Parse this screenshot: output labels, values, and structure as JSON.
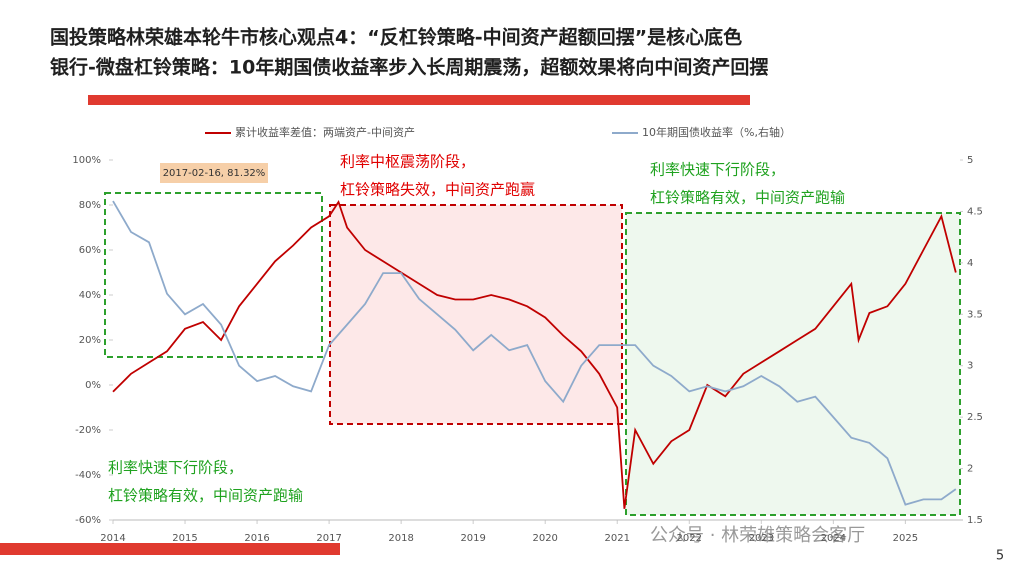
{
  "chart_data": {
    "type": "line",
    "title": [
      "国投策略林荣雄本轮牛市核心观点4：“反杠铃策略-中间资产超额回摆”是核心底色",
      "银行-微盘杠铃策略：10年期国债收益率步入长周期震荡，超额效果将向中间资产回摆"
    ],
    "annotations": [
      "利率中枢震荡阶段，",
      "杠铃策略失效，中间资产跑赢",
      "利率快速下行阶段，",
      "杠铃策略有效，中间资产跑输",
      "利率快速下行阶段，",
      "杠铃策略有效，中间资产跑输"
    ],
    "highlight_label": "2017-02-16, 81.32%",
    "page_number": "5",
    "watermark": "公众号 · 林荣雄策略会客厅",
    "xlim": [
      2014,
      2025.8
    ],
    "xticks": [
      2014,
      2015,
      2016,
      2017,
      2018,
      2019,
      2020,
      2021,
      2022,
      2023,
      2024,
      2025
    ],
    "ylim": [
      -60,
      100
    ],
    "yticks": [
      {
        "value": -60,
        "label": "-60%"
      },
      {
        "value": -40,
        "label": "-40%"
      },
      {
        "value": -20,
        "label": "-20%"
      },
      {
        "value": 0,
        "label": "0%"
      },
      {
        "value": 20,
        "label": "20%"
      },
      {
        "value": 40,
        "label": "40%"
      },
      {
        "value": 60,
        "label": "60%"
      },
      {
        "value": 80,
        "label": "80%"
      },
      {
        "value": 100,
        "label": "100%"
      }
    ],
    "y2lim": [
      1.5,
      5
    ],
    "y2ticks": [
      1.5,
      2,
      2.5,
      3,
      3.5,
      4,
      4.5,
      5
    ],
    "series": [
      {
        "name": "累计收益率差值：两端资产-中间资产",
        "color": "#c00000",
        "x": [
          2014.0,
          2014.25,
          2014.5,
          2014.75,
          2015.0,
          2015.25,
          2015.5,
          2015.75,
          2016.0,
          2016.25,
          2016.5,
          2016.75,
          2017.0,
          2017.13,
          2017.25,
          2017.5,
          2017.75,
          2018.0,
          2018.25,
          2018.5,
          2018.75,
          2019.0,
          2019.25,
          2019.5,
          2019.75,
          2020.0,
          2020.25,
          2020.5,
          2020.75,
          2021.0,
          2021.1,
          2021.25,
          2021.5,
          2021.75,
          2022.0,
          2022.25,
          2022.5,
          2022.75,
          2023.0,
          2023.25,
          2023.5,
          2023.75,
          2024.0,
          2024.25,
          2024.35,
          2024.5,
          2024.75,
          2025.0,
          2025.25,
          2025.5,
          2025.7
        ],
        "values": [
          -3,
          5,
          10,
          15,
          25,
          28,
          20,
          35,
          45,
          55,
          62,
          70,
          75,
          81.32,
          70,
          60,
          55,
          50,
          45,
          40,
          38,
          38,
          40,
          38,
          35,
          30,
          22,
          15,
          5,
          -10,
          -55,
          -20,
          -35,
          -25,
          -20,
          0,
          -5,
          5,
          10,
          15,
          20,
          25,
          35,
          45,
          20,
          32,
          35,
          45,
          60,
          75,
          50
        ]
      },
      {
        "name": "10年期国债收益率（%,右轴）",
        "color": "#8eaacb",
        "axis": "y2",
        "x": [
          2014.0,
          2014.25,
          2014.5,
          2014.75,
          2015.0,
          2015.25,
          2015.5,
          2015.75,
          2016.0,
          2016.25,
          2016.5,
          2016.75,
          2017.0,
          2017.25,
          2017.5,
          2017.75,
          2018.0,
          2018.25,
          2018.5,
          2018.75,
          2019.0,
          2019.25,
          2019.5,
          2019.75,
          2020.0,
          2020.25,
          2020.5,
          2020.75,
          2021.0,
          2021.25,
          2021.5,
          2021.75,
          2022.0,
          2022.25,
          2022.5,
          2022.75,
          2023.0,
          2023.25,
          2023.5,
          2023.75,
          2024.0,
          2024.25,
          2024.5,
          2024.75,
          2025.0,
          2025.25,
          2025.5,
          2025.7
        ],
        "values": [
          4.6,
          4.3,
          4.2,
          3.7,
          3.5,
          3.6,
          3.4,
          3.0,
          2.85,
          2.9,
          2.8,
          2.75,
          3.2,
          3.4,
          3.6,
          3.9,
          3.9,
          3.65,
          3.5,
          3.35,
          3.15,
          3.3,
          3.15,
          3.2,
          2.85,
          2.65,
          3.0,
          3.2,
          3.2,
          3.2,
          3.0,
          2.9,
          2.75,
          2.8,
          2.75,
          2.8,
          2.9,
          2.8,
          2.65,
          2.7,
          2.5,
          2.3,
          2.25,
          2.1,
          1.65,
          1.7,
          1.7,
          1.8
        ]
      }
    ]
  }
}
